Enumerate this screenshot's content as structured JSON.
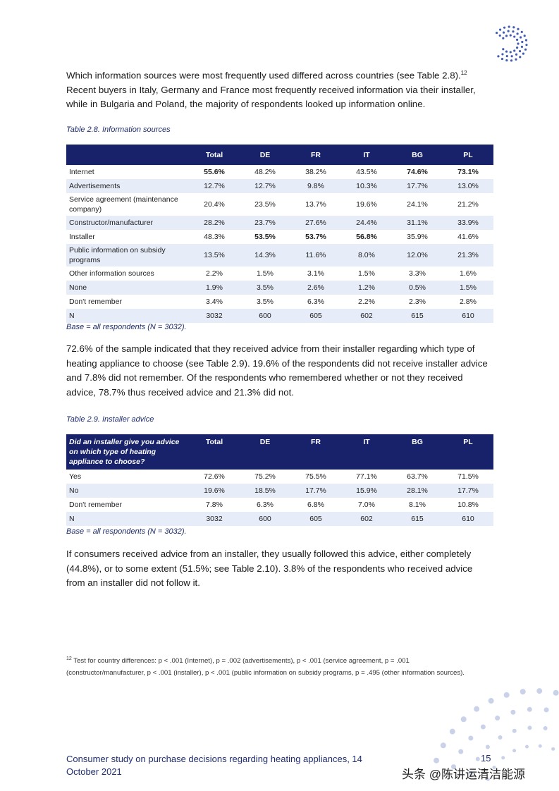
{
  "intro": {
    "text_before": "Which information sources were most frequently used differed across countries (see Table 2.8).",
    "footnote_ref": "12",
    "text_after": " Recent buyers in Italy, Germany and France most frequently received information via their installer, while in Bulgaria and Poland, the majority of respondents looked up information online."
  },
  "table1": {
    "caption": "Table 2.8. Information sources",
    "columns": [
      "Total",
      "DE",
      "FR",
      "IT",
      "BG",
      "PL"
    ],
    "rows": [
      {
        "label": "Internet",
        "cells": [
          "55.6%",
          "48.2%",
          "38.2%",
          "43.5%",
          "74.6%",
          "73.1%"
        ],
        "bold": [
          0,
          4,
          5
        ]
      },
      {
        "label": "Advertisements",
        "cells": [
          "12.7%",
          "12.7%",
          "9.8%",
          "10.3%",
          "17.7%",
          "13.0%"
        ]
      },
      {
        "label": "Service agreement (maintenance company)",
        "cells": [
          "20.4%",
          "23.5%",
          "13.7%",
          "19.6%",
          "24.1%",
          "21.2%"
        ]
      },
      {
        "label": "Constructor/manufacturer",
        "cells": [
          "28.2%",
          "23.7%",
          "27.6%",
          "24.4%",
          "31.1%",
          "33.9%"
        ]
      },
      {
        "label": "Installer",
        "cells": [
          "48.3%",
          "53.5%",
          "53.7%",
          "56.8%",
          "35.9%",
          "41.6%"
        ],
        "bold": [
          1,
          2,
          3
        ]
      },
      {
        "label": "Public information on subsidy programs",
        "cells": [
          "13.5%",
          "14.3%",
          "11.6%",
          "8.0%",
          "12.0%",
          "21.3%"
        ]
      },
      {
        "label": "Other information sources",
        "cells": [
          "2.2%",
          "1.5%",
          "3.1%",
          "1.5%",
          "3.3%",
          "1.6%"
        ]
      },
      {
        "label": "None",
        "cells": [
          "1.9%",
          "3.5%",
          "2.6%",
          "1.2%",
          "0.5%",
          "1.5%"
        ]
      },
      {
        "label": "Don't remember",
        "cells": [
          "3.4%",
          "3.5%",
          "6.3%",
          "2.2%",
          "2.3%",
          "2.8%"
        ]
      },
      {
        "label": "N",
        "cells": [
          "3032",
          "600",
          "605",
          "602",
          "615",
          "610"
        ]
      }
    ],
    "note": "Base = all respondents (N = 3032)."
  },
  "paragraph2": "72.6% of the sample indicated that they received advice from their installer regarding which type of heating appliance to choose (see Table 2.9). 19.6% of the respondents did not receive installer advice and 7.8% did not remember. Of the respondents who remembered whether or not they received advice, 78.7% thus received advice and 21.3% did not.",
  "table2": {
    "caption": "Table 2.9. Installer advice",
    "corner": "Did an installer give you advice on which type of heating appliance to choose?",
    "columns": [
      "Total",
      "DE",
      "FR",
      "IT",
      "BG",
      "PL"
    ],
    "rows": [
      {
        "label": "Yes",
        "cells": [
          "72.6%",
          "75.2%",
          "75.5%",
          "77.1%",
          "63.7%",
          "71.5%"
        ]
      },
      {
        "label": "No",
        "cells": [
          "19.6%",
          "18.5%",
          "17.7%",
          "15.9%",
          "28.1%",
          "17.7%"
        ]
      },
      {
        "label": "Don't remember",
        "cells": [
          "7.8%",
          "6.3%",
          "6.8%",
          "7.0%",
          "8.1%",
          "10.8%"
        ]
      },
      {
        "label": "N",
        "cells": [
          "3032",
          "600",
          "605",
          "602",
          "615",
          "610"
        ]
      }
    ],
    "note": "Base = all respondents (N = 3032)."
  },
  "paragraph3": "If consumers received advice from an installer, they usually followed this advice, either completely (44.8%), or to some extent (51.5%; see Table 2.10). 3.8% of the respondents who received advice from an installer did not follow it.",
  "footnote": {
    "number": "12",
    "text": " Test for country differences: p < .001 (Internet), p = .002 (advertisements), p < .001 (service agreement, p = .001 (constructor/manufacturer, p < .001 (installer), p < .001 (public information on subsidy programs, p = .495 (other information sources)."
  },
  "footer": {
    "title": "Consumer study on purchase decisions regarding heating appliances, 14 October 2021",
    "page": "15"
  },
  "watermark": "头条 @陈讲运清洁能源"
}
